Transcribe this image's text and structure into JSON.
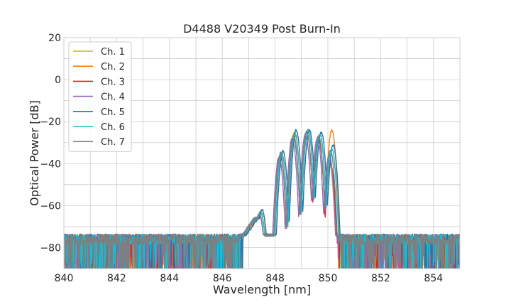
{
  "chart_data": {
    "type": "line",
    "title": "D4488 V20349 Post Burn-In",
    "xlabel": "Wavelength [nm]",
    "ylabel": "Optical Power [dB]",
    "xlim": [
      840,
      855
    ],
    "ylim": [
      -90,
      20
    ],
    "x_ticks": [
      840,
      842,
      844,
      846,
      848,
      850,
      852,
      854
    ],
    "y_ticks": [
      20,
      0,
      -20,
      -40,
      -60,
      -80
    ],
    "x_tick_labels": [
      "840",
      "842",
      "844",
      "846",
      "848",
      "850",
      "852",
      "854"
    ],
    "y_tick_labels": [
      "20",
      "0",
      "−20",
      "−40",
      "−60",
      "−80"
    ],
    "grid": true,
    "legend_position": "top-left",
    "noise_floor_dB": -76,
    "series": [
      {
        "name": "Ch. 1",
        "color": "#bcbd22",
        "peak_wl": [
          847.45,
          848.2,
          848.7,
          849.2,
          849.65,
          850.05
        ],
        "peak_db": [
          -63,
          -36,
          -26,
          -25,
          -27,
          -39
        ],
        "band": [
          846.7,
          850.4
        ]
      },
      {
        "name": "Ch. 2",
        "color": "#ff7f0e",
        "peak_wl": [
          847.5,
          848.25,
          848.75,
          849.25,
          849.7,
          850.15
        ],
        "peak_db": [
          -62,
          -35,
          -25,
          -24,
          -26,
          -24
        ],
        "band": [
          846.75,
          850.45
        ]
      },
      {
        "name": "Ch. 3",
        "color": "#d62728",
        "peak_wl": [
          847.45,
          848.2,
          848.7,
          849.2,
          849.65,
          850.1
        ],
        "peak_db": [
          -63,
          -36,
          -27,
          -25,
          -28,
          -40
        ],
        "band": [
          846.7,
          850.35
        ]
      },
      {
        "name": "Ch. 4",
        "color": "#9467bd",
        "peak_wl": [
          847.4,
          848.15,
          848.65,
          849.15,
          849.6,
          850.05
        ],
        "peak_db": [
          -64,
          -37,
          -28,
          -26,
          -28,
          -36
        ],
        "band": [
          846.65,
          850.35
        ]
      },
      {
        "name": "Ch. 5",
        "color": "#1f77b4",
        "peak_wl": [
          847.5,
          848.3,
          848.8,
          849.3,
          849.75,
          850.2
        ],
        "peak_db": [
          -62,
          -34,
          -24,
          -24,
          -25,
          -31
        ],
        "band": [
          846.8,
          850.5
        ]
      },
      {
        "name": "Ch. 6",
        "color": "#17becf",
        "peak_wl": [
          847.45,
          848.25,
          848.75,
          849.25,
          849.7,
          850.15
        ],
        "peak_db": [
          -63,
          -35,
          -26,
          -24,
          -26,
          -33
        ],
        "band": [
          846.7,
          850.45
        ]
      },
      {
        "name": "Ch. 7",
        "color": "#7f7f7f",
        "peak_wl": [
          847.4,
          848.2,
          848.7,
          849.2,
          849.65,
          850.1
        ],
        "peak_db": [
          -64,
          -35,
          -27,
          -25,
          -27,
          -34
        ],
        "band": [
          846.65,
          850.4
        ]
      }
    ]
  }
}
